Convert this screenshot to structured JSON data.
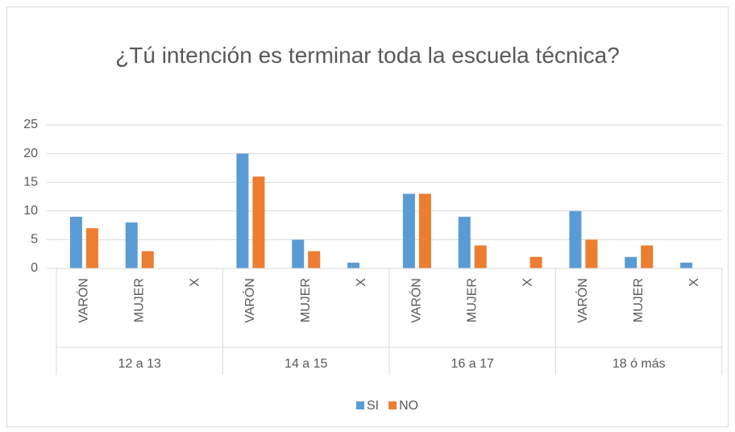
{
  "chart_data": {
    "type": "bar",
    "title": "¿Tú intención es terminar toda la escuela técnica?",
    "groups": [
      "12 a 13",
      "14 a 15",
      "16 a 17",
      "18 ó más"
    ],
    "categories": [
      "VARÓN",
      "MUJER",
      "X",
      "VARÓN",
      "MUJER",
      "X",
      "VARÓN",
      "MUJER",
      "X",
      "VARÓN",
      "MUJER",
      "X"
    ],
    "series": [
      {
        "name": "SI",
        "color": "#5b9bd5",
        "values": [
          9,
          8,
          0,
          20,
          5,
          1,
          13,
          9,
          0,
          10,
          2,
          1
        ]
      },
      {
        "name": "NO",
        "color": "#ed7d31",
        "values": [
          7,
          3,
          0,
          16,
          3,
          0,
          13,
          4,
          2,
          5,
          4,
          0
        ]
      }
    ],
    "ylim": [
      0,
      25
    ],
    "yticks": [
      0,
      5,
      10,
      15,
      20,
      25
    ],
    "grid": true,
    "legend": "bottom"
  }
}
